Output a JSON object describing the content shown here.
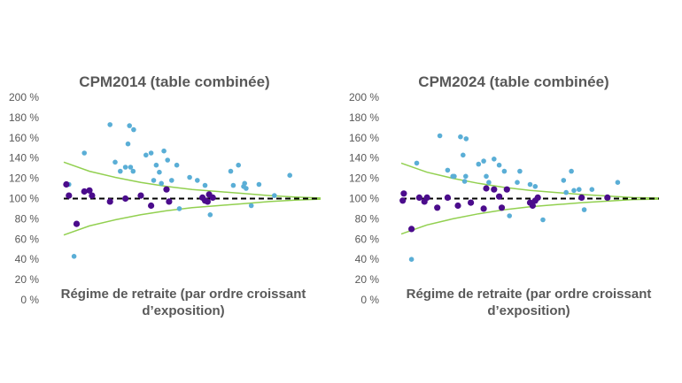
{
  "chart_data": [
    {
      "type": "scatter",
      "title": "CPM2014 (table combinée)",
      "xlabel": [
        "Régime de retraite (par ordre croissant",
        "d’exposition)"
      ],
      "ylim": [
        0,
        200
      ],
      "xlim": [
        0,
        50
      ],
      "yticks": [
        "0 %",
        "20 %",
        "40 %",
        "60 %",
        "80 %",
        "100 %",
        "120 %",
        "140 %",
        "160 %",
        "180 %",
        "200 %"
      ],
      "colors": {
        "light": "#5aaed6",
        "dark": "#4b0c8c",
        "band": "#92d050",
        "reference": "#000000"
      },
      "reference_line": 100,
      "band": {
        "upper": [
          [
            0,
            136
          ],
          [
            5,
            127
          ],
          [
            10,
            121
          ],
          [
            15,
            116
          ],
          [
            20,
            112
          ],
          [
            25,
            109
          ],
          [
            30,
            107
          ],
          [
            35,
            105
          ],
          [
            40,
            103
          ],
          [
            45,
            101.5
          ],
          [
            50,
            100.5
          ]
        ],
        "lower": [
          [
            0,
            64
          ],
          [
            5,
            73
          ],
          [
            10,
            79
          ],
          [
            15,
            84
          ],
          [
            20,
            88
          ],
          [
            25,
            91
          ],
          [
            30,
            93
          ],
          [
            35,
            95
          ],
          [
            40,
            97
          ],
          [
            45,
            98.5
          ],
          [
            50,
            99.5
          ]
        ]
      },
      "series": [
        {
          "color": "light",
          "points": [
            [
              1,
              114
            ],
            [
              2,
              43
            ],
            [
              4,
              145
            ],
            [
              9,
              173
            ],
            [
              10,
              136
            ],
            [
              11,
              127
            ],
            [
              12,
              131
            ],
            [
              12.5,
              154
            ],
            [
              12.8,
              172
            ],
            [
              13,
              131
            ],
            [
              13.5,
              127
            ],
            [
              13.6,
              168
            ],
            [
              16,
              143
            ],
            [
              17,
              145
            ],
            [
              17.5,
              118
            ],
            [
              18,
              133
            ],
            [
              18.6,
              126
            ],
            [
              19,
              115
            ],
            [
              19.5,
              147
            ],
            [
              20.2,
              138
            ],
            [
              21,
              118
            ],
            [
              22,
              133
            ],
            [
              22.5,
              90
            ],
            [
              24.5,
              121
            ],
            [
              26,
              118
            ],
            [
              27.5,
              113
            ],
            [
              28.5,
              84
            ],
            [
              32.5,
              127
            ],
            [
              33,
              113
            ],
            [
              34,
              133
            ],
            [
              35,
              112
            ],
            [
              35.2,
              115
            ],
            [
              35.5,
              110
            ],
            [
              36.5,
              93
            ],
            [
              38,
              114
            ],
            [
              41,
              103
            ],
            [
              44,
              123
            ]
          ]
        },
        {
          "color": "dark",
          "points": [
            [
              0.5,
              114
            ],
            [
              1,
              103
            ],
            [
              2.5,
              75
            ],
            [
              4,
              107
            ],
            [
              5,
              108
            ],
            [
              5.5,
              103
            ],
            [
              9,
              97
            ],
            [
              12,
              100
            ],
            [
              15,
              103
            ],
            [
              17,
              93
            ],
            [
              20,
              109
            ],
            [
              20.5,
              97
            ],
            [
              27,
              101
            ],
            [
              27.5,
              98
            ],
            [
              28,
              97
            ],
            [
              28.3,
              104
            ],
            [
              29,
              101
            ]
          ]
        }
      ]
    },
    {
      "type": "scatter",
      "title": "CPM2024 (table combinée)",
      "xlabel": [
        "Régime de retraite (par ordre croissant",
        "d’exposition)"
      ],
      "ylim": [
        0,
        200
      ],
      "xlim": [
        0,
        50
      ],
      "yticks": [
        "0 %",
        "20 %",
        "40 %",
        "60 %",
        "80 %",
        "100 %",
        "120 %",
        "140 %",
        "160 %",
        "180 %",
        "200 %"
      ],
      "colors": {
        "light": "#5aaed6",
        "dark": "#4b0c8c",
        "band": "#92d050",
        "reference": "#000000"
      },
      "reference_line": 100,
      "band": {
        "upper": [
          [
            0,
            135
          ],
          [
            5,
            126
          ],
          [
            10,
            120
          ],
          [
            15,
            115
          ],
          [
            20,
            111
          ],
          [
            25,
            108
          ],
          [
            30,
            106
          ],
          [
            35,
            104
          ],
          [
            40,
            102.5
          ],
          [
            45,
            101
          ],
          [
            50,
            100.5
          ]
        ],
        "lower": [
          [
            0,
            65
          ],
          [
            5,
            74
          ],
          [
            10,
            80
          ],
          [
            15,
            85
          ],
          [
            20,
            89
          ],
          [
            25,
            92
          ],
          [
            30,
            94
          ],
          [
            35,
            96
          ],
          [
            40,
            97.5
          ],
          [
            45,
            99
          ],
          [
            50,
            99.5
          ]
        ]
      },
      "series": [
        {
          "color": "light",
          "points": [
            [
              2,
              40
            ],
            [
              3,
              135
            ],
            [
              7.5,
              162
            ],
            [
              9,
              128
            ],
            [
              10,
              122
            ],
            [
              10.3,
              122
            ],
            [
              11.5,
              161
            ],
            [
              12,
              143
            ],
            [
              12.3,
              117
            ],
            [
              12.5,
              122
            ],
            [
              12.6,
              159
            ],
            [
              15,
              134
            ],
            [
              16,
              137
            ],
            [
              16.5,
              122
            ],
            [
              17,
              116
            ],
            [
              18,
              139
            ],
            [
              19,
              133
            ],
            [
              20,
              127
            ],
            [
              21,
              83
            ],
            [
              22.5,
              116
            ],
            [
              23,
              127
            ],
            [
              25,
              114
            ],
            [
              26,
              112
            ],
            [
              27.5,
              79
            ],
            [
              31.5,
              118
            ],
            [
              32,
              106
            ],
            [
              33,
              127
            ],
            [
              33.5,
              108
            ],
            [
              34.5,
              109
            ],
            [
              35.5,
              89
            ],
            [
              37,
              109
            ],
            [
              42,
              116
            ]
          ]
        },
        {
          "color": "dark",
          "points": [
            [
              0.3,
              98
            ],
            [
              0.5,
              105
            ],
            [
              2,
              70
            ],
            [
              3.5,
              101
            ],
            [
              4.5,
              97
            ],
            [
              5,
              101
            ],
            [
              7,
              91
            ],
            [
              9,
              101
            ],
            [
              11,
              93
            ],
            [
              13.5,
              96
            ],
            [
              16,
              90
            ],
            [
              16.5,
              110
            ],
            [
              18,
              109
            ],
            [
              19,
              102
            ],
            [
              19.5,
              91
            ],
            [
              20.5,
              109
            ],
            [
              25,
              96
            ],
            [
              25.5,
              93
            ],
            [
              26,
              98
            ],
            [
              26.5,
              101
            ],
            [
              35,
              101
            ],
            [
              40,
              101
            ]
          ]
        }
      ]
    }
  ]
}
